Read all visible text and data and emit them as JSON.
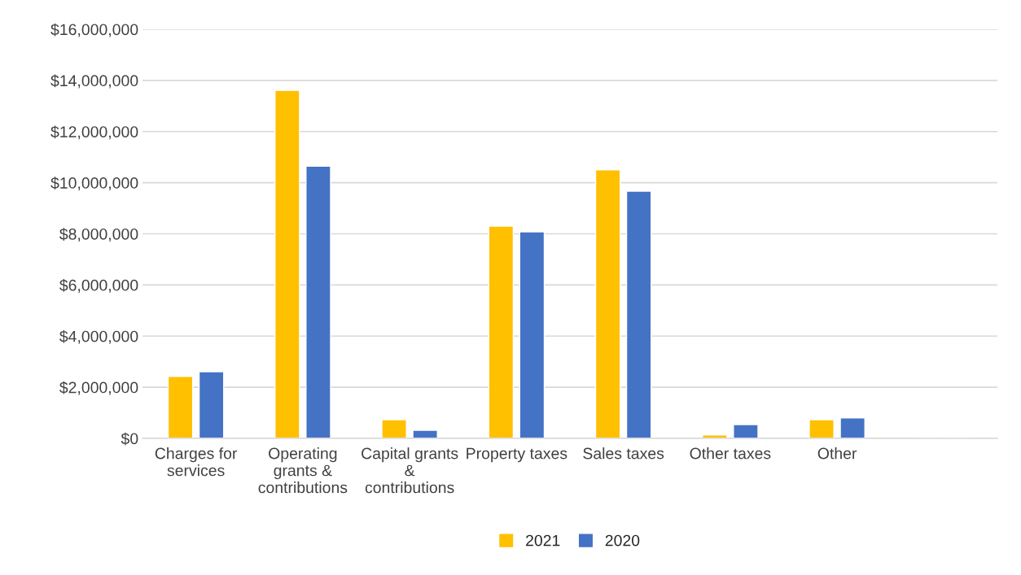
{
  "chart_data": {
    "type": "bar",
    "categories": [
      "Charges for\nservices",
      "Operating\ngrants &\ncontributions",
      "Capital grants\n&\ncontributions",
      "Property taxes",
      "Sales taxes",
      "Other taxes",
      "Other",
      null
    ],
    "series": [
      {
        "name": "2021",
        "color": "#ffc000",
        "values": [
          2420000,
          13610000,
          730000,
          8300000,
          10500000,
          130000,
          730000,
          null
        ]
      },
      {
        "name": "2020",
        "color": "#4472c4",
        "values": [
          2610000,
          10650000,
          320000,
          8080000,
          9670000,
          540000,
          800000,
          null
        ]
      }
    ],
    "ylim": [
      0,
      16000000
    ],
    "yticks": [
      {
        "value": 0,
        "label": "$0"
      },
      {
        "value": 2000000,
        "label": "$2,000,000"
      },
      {
        "value": 4000000,
        "label": "$4,000,000"
      },
      {
        "value": 6000000,
        "label": "$6,000,000"
      },
      {
        "value": 8000000,
        "label": "$8,000,000"
      },
      {
        "value": 10000000,
        "label": "$10,000,000"
      },
      {
        "value": 12000000,
        "label": "$12,000,000"
      },
      {
        "value": 14000000,
        "label": "$14,000,000"
      },
      {
        "value": 16000000,
        "label": "$16,000,000"
      }
    ],
    "grid": "y",
    "legend": "bottom"
  }
}
